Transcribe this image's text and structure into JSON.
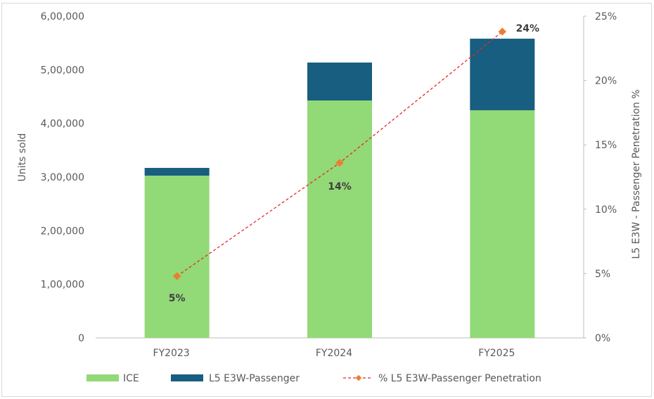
{
  "chart_data": {
    "type": "bar",
    "stacked": true,
    "title": "",
    "categories": [
      "FY2023",
      "FY2024",
      "FY2025"
    ],
    "series": [
      {
        "name": "ICE",
        "type": "bar",
        "axis": "left",
        "color": "#92d977",
        "values": [
          302600,
          442800,
          424500
        ]
      },
      {
        "name": "L5 E3W-Passenger",
        "type": "bar",
        "axis": "left",
        "color": "#175e80",
        "values": [
          14400,
          70700,
          133500
        ]
      },
      {
        "name": "% L5 E3W-Passenger Penetration",
        "type": "line",
        "axis": "right",
        "color": "#e8272b",
        "marker_color": "#ed7d31",
        "values": [
          4.8,
          13.6,
          23.8
        ],
        "labels": [
          "5%",
          "14%",
          "24%"
        ]
      }
    ],
    "ylabel": "Units sold",
    "ylim": [
      0,
      600000
    ],
    "yticks": [
      0,
      100000,
      200000,
      300000,
      400000,
      500000,
      600000
    ],
    "ytick_labels": [
      "0",
      "1,00,000",
      "2,00,000",
      "3,00,000",
      "4,00,000",
      "5,00,000",
      "6,00,000"
    ],
    "y2label": "L5 E3W - Passenger Penetration %",
    "y2lim": [
      0,
      25
    ],
    "y2ticks": [
      0,
      5,
      10,
      15,
      20,
      25
    ],
    "y2tick_labels": [
      "0%",
      "5%",
      "10%",
      "15%",
      "20%",
      "25%"
    ],
    "grid": false,
    "legend": "bottom"
  }
}
